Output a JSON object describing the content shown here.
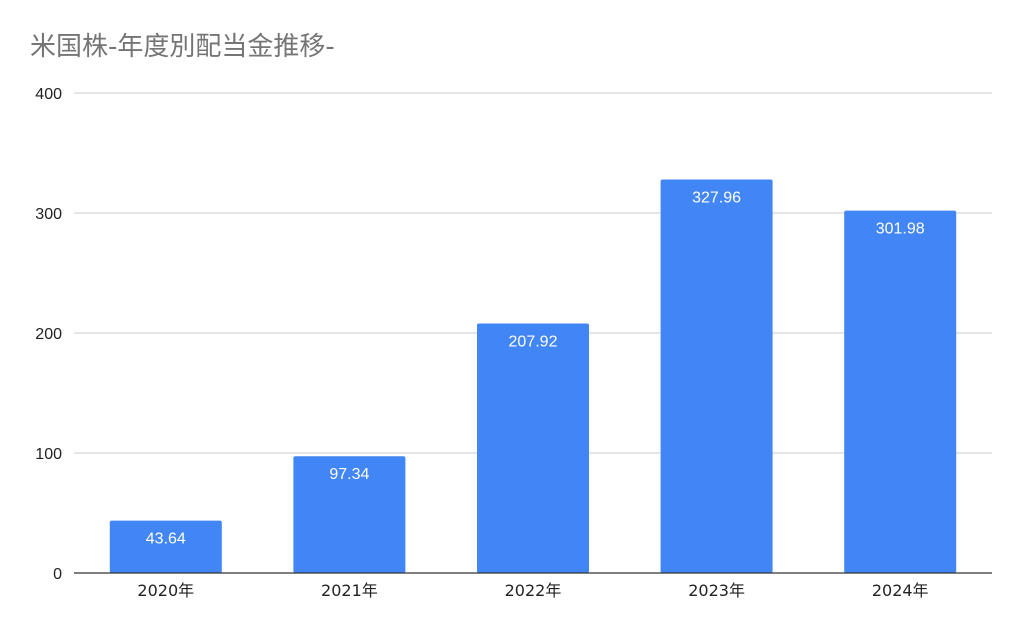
{
  "chart_data": {
    "type": "bar",
    "title": "米国株-年度別配当金推移-",
    "categories": [
      "2020年",
      "2021年",
      "2022年",
      "2023年",
      "2024年"
    ],
    "values": [
      43.64,
      97.34,
      207.92,
      327.96,
      301.98
    ],
    "data_labels": [
      "43.64",
      "97.34",
      "207.92",
      "327.96",
      "301.98"
    ],
    "ylim": [
      0,
      400
    ],
    "yticks": [
      0,
      100,
      200,
      300,
      400
    ],
    "grid": true,
    "legend": "none",
    "bar_color": "#4285f4",
    "grid_color": "#cccccc",
    "title_color": "#757575"
  }
}
